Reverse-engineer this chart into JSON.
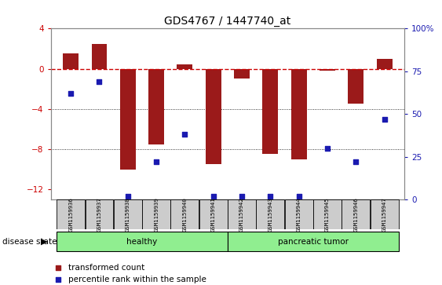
{
  "title": "GDS4767 / 1447740_at",
  "samples": [
    "GSM1159936",
    "GSM1159937",
    "GSM1159938",
    "GSM1159939",
    "GSM1159940",
    "GSM1159941",
    "GSM1159942",
    "GSM1159943",
    "GSM1159944",
    "GSM1159945",
    "GSM1159946",
    "GSM1159947"
  ],
  "red_bars": [
    1.5,
    2.5,
    -10.0,
    -7.5,
    0.4,
    -9.5,
    -1.0,
    -8.5,
    -9.0,
    -0.2,
    -3.5,
    1.0
  ],
  "blue_percentiles": [
    62,
    69,
    2,
    22,
    38,
    2,
    2,
    2,
    2,
    30,
    22,
    47
  ],
  "ylim_left": [
    -13,
    4
  ],
  "ylim_right": [
    0,
    100
  ],
  "yticks_left": [
    4,
    0,
    -4,
    -8,
    -12
  ],
  "yticks_right": [
    0,
    25,
    50,
    75,
    100
  ],
  "healthy_count": 6,
  "tumor_count": 6,
  "healthy_label": "healthy",
  "tumor_label": "pancreatic tumor",
  "disease_label": "disease state",
  "legend_red": "transformed count",
  "legend_blue": "percentile rank within the sample",
  "bar_color": "#9B1A1A",
  "square_color": "#1A1AB0",
  "dashed_line_color": "#CC0000",
  "grid_color": "black",
  "healthy_box_color": "#90EE90",
  "tumor_box_color": "#90EE90",
  "bar_width": 0.55,
  "label_box_color": "#CCCCCC",
  "spine_color": "#888888"
}
